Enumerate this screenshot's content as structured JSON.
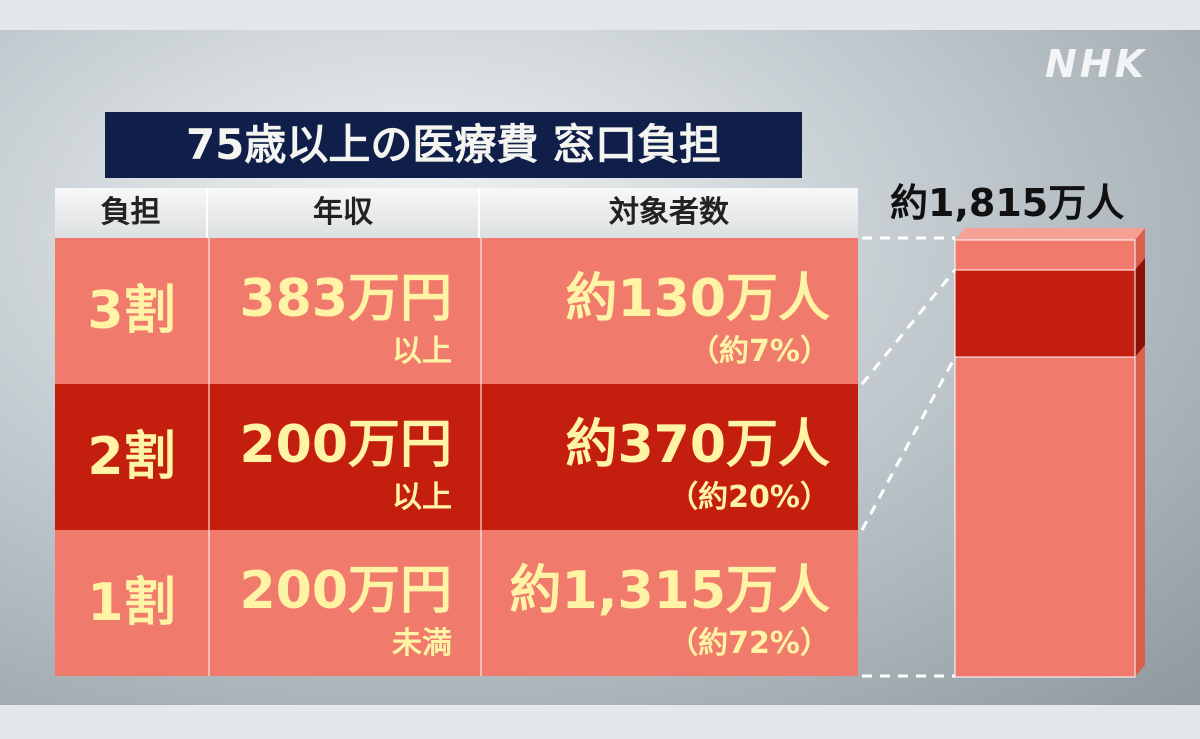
{
  "header": {
    "title": "75歳以上の医療費 窓口負担",
    "logo": "NHK"
  },
  "table": {
    "columns": [
      "負担",
      "年収",
      "対象者数"
    ],
    "rows": [
      {
        "burden": "3割",
        "income": "383万円",
        "income_note": "以上",
        "count": "約130万人",
        "share": "（約7%）"
      },
      {
        "burden": "2割",
        "income": "200万円",
        "income_note": "以上",
        "count": "約370万人",
        "share": "（約20%）"
      },
      {
        "burden": "1割",
        "income": "200万円",
        "income_note": "未満",
        "count": "約1,315万人",
        "share": "（約72%）"
      }
    ]
  },
  "total": "約1,815万人"
}
